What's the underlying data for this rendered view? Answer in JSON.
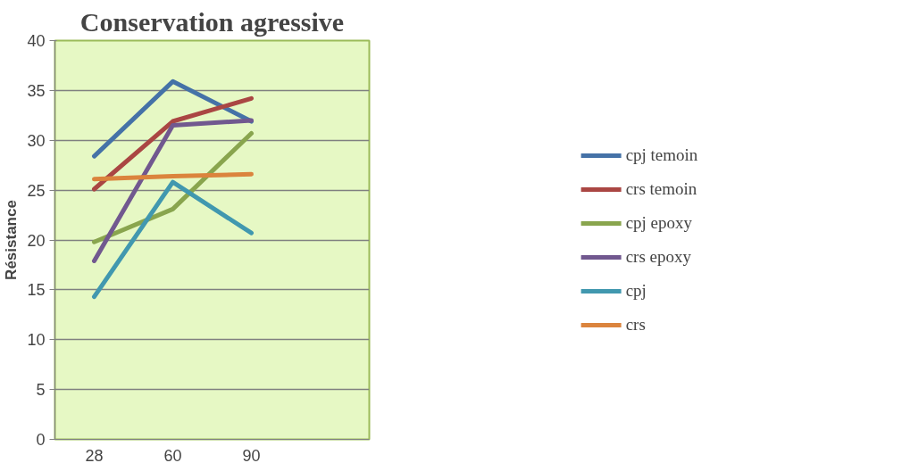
{
  "chart_data": {
    "type": "line",
    "title": "Conservation agressive",
    "ylabel": "Résistance",
    "categories": [
      "28",
      "60",
      "90",
      null
    ],
    "series": [
      {
        "name": "cpj temoin",
        "color": "#4572a7",
        "values": [
          28.4,
          35.9,
          31.9,
          null
        ]
      },
      {
        "name": "crs temoin",
        "color": "#aa4643",
        "values": [
          25.1,
          31.9,
          34.2,
          null
        ]
      },
      {
        "name": "cpj epoxy",
        "color": "#89a54e",
        "values": [
          19.8,
          23.1,
          30.7,
          null
        ]
      },
      {
        "name": "crs epoxy",
        "color": "#71588f",
        "values": [
          17.9,
          31.5,
          32.0,
          null
        ]
      },
      {
        "name": "cpj",
        "color": "#4198af",
        "values": [
          14.3,
          25.8,
          20.7,
          null
        ]
      },
      {
        "name": "crs",
        "color": "#db843d",
        "values": [
          26.1,
          26.4,
          26.6,
          null
        ]
      }
    ],
    "ylim": [
      0,
      40
    ],
    "yticks": [
      0,
      5,
      10,
      15,
      20,
      25,
      30,
      35,
      40
    ],
    "grid": "y",
    "legend": "right",
    "marker": "none",
    "line_style": "solid"
  }
}
